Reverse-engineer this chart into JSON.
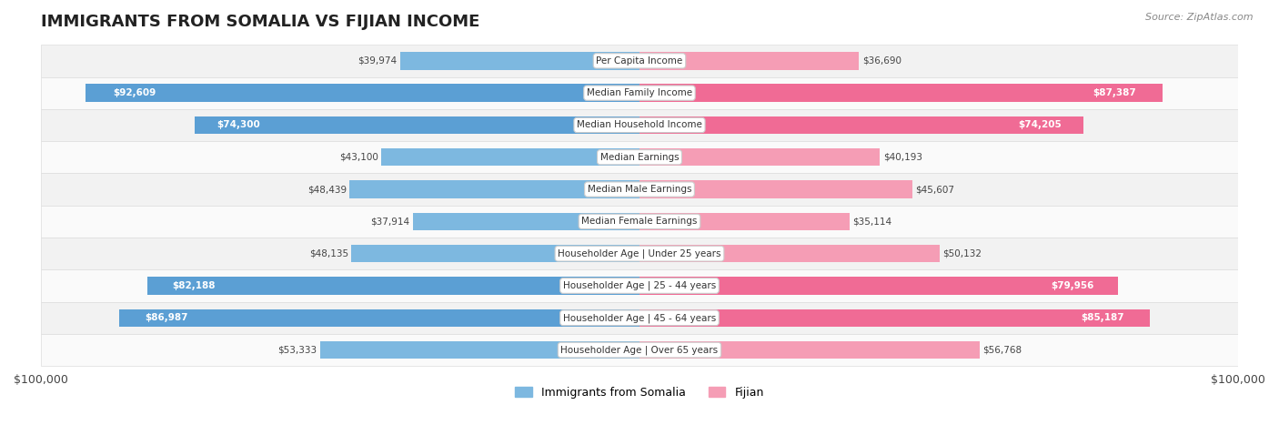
{
  "title": "IMMIGRANTS FROM SOMALIA VS FIJIAN INCOME",
  "source": "Source: ZipAtlas.com",
  "categories": [
    "Per Capita Income",
    "Median Family Income",
    "Median Household Income",
    "Median Earnings",
    "Median Male Earnings",
    "Median Female Earnings",
    "Householder Age | Under 25 years",
    "Householder Age | 25 - 44 years",
    "Householder Age | 45 - 64 years",
    "Householder Age | Over 65 years"
  ],
  "somalia_values": [
    39974,
    92609,
    74300,
    43100,
    48439,
    37914,
    48135,
    82188,
    86987,
    53333
  ],
  "fijian_values": [
    36690,
    87387,
    74205,
    40193,
    45607,
    35114,
    50132,
    79956,
    85187,
    56768
  ],
  "somalia_labels": [
    "$39,974",
    "$92,609",
    "$74,300",
    "$43,100",
    "$48,439",
    "$37,914",
    "$48,135",
    "$82,188",
    "$86,987",
    "$53,333"
  ],
  "fijian_labels": [
    "$36,690",
    "$87,387",
    "$74,205",
    "$40,193",
    "$45,607",
    "$35,114",
    "$50,132",
    "$79,956",
    "$85,187",
    "$56,768"
  ],
  "max_value": 100000,
  "somalia_color_light": "#aec6e8",
  "somalia_color_dark": "#6fa8d8",
  "fijian_color_light": "#f4a7b9",
  "fijian_color_dark": "#f06292",
  "somalia_bar_color": "#7aafd4",
  "fijian_bar_color": "#f08caa",
  "background_row_odd": "#f5f5f5",
  "background_row_even": "#ffffff",
  "label_bg": "#ffffff",
  "title_fontsize": 14,
  "axis_label": "$100,000",
  "legend_somalia": "Immigrants from Somalia",
  "legend_fijian": "Fijian"
}
